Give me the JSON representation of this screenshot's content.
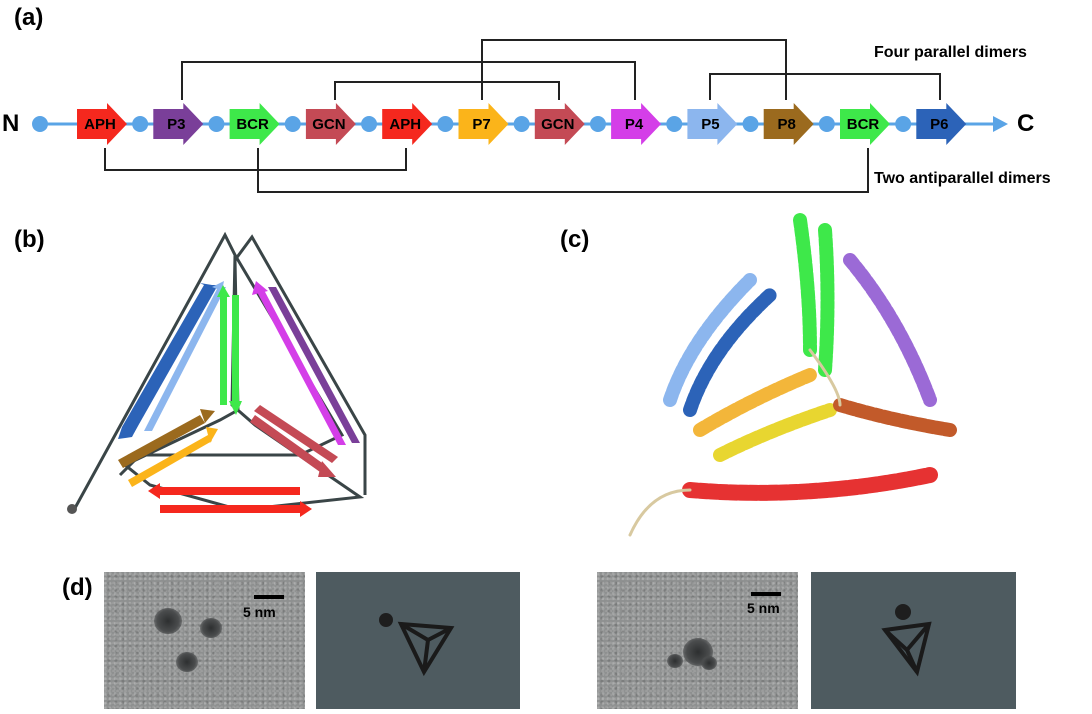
{
  "panels": {
    "a": "(a)",
    "b": "(b)",
    "c": "(c)",
    "d": "(d)"
  },
  "panel_a": {
    "n_terminus": "N",
    "c_terminus": "C",
    "top_note": "Four parallel dimers",
    "bottom_note": "Two antiparallel dimers",
    "segments": [
      {
        "label": "APH",
        "color": "#f5281e"
      },
      {
        "label": "P3",
        "color": "#7a3f99"
      },
      {
        "label": "BCR",
        "color": "#3ee84a"
      },
      {
        "label": "GCN",
        "color": "#c44a55"
      },
      {
        "label": "APH",
        "color": "#f5281e"
      },
      {
        "label": "P7",
        "color": "#fbb41a"
      },
      {
        "label": "GCN",
        "color": "#c44a55"
      },
      {
        "label": "P4",
        "color": "#d43ee8"
      },
      {
        "label": "P5",
        "color": "#8cb6ee"
      },
      {
        "label": "P8",
        "color": "#9b6a1e"
      },
      {
        "label": "BCR",
        "color": "#3ee84a"
      },
      {
        "label": "P6",
        "color": "#2c63b8"
      }
    ],
    "linker_color": "#5aa4e6"
  },
  "panel_d": {
    "scale_label_left": "5 nm",
    "scale_label_right": "5 nm"
  }
}
